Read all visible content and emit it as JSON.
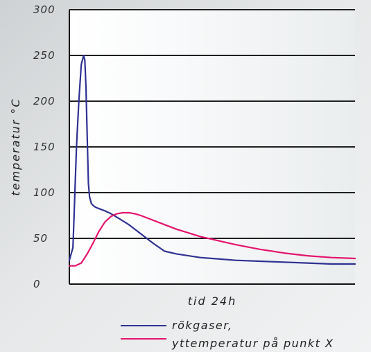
{
  "chart_data": {
    "type": "line",
    "ylabel": "temperatur   °C",
    "xlabel": "tid 24h",
    "ylim": [
      0,
      300
    ],
    "yticks": [
      0,
      50,
      100,
      150,
      200,
      250,
      300
    ],
    "xlim": [
      0,
      24
    ],
    "grid": true,
    "legend_position": "bottom",
    "series": [
      {
        "name": "rökgaser,",
        "color": "#2e3192",
        "x": [
          0,
          0.3,
          0.6,
          0.8,
          1.0,
          1.2,
          1.3,
          1.4,
          1.5,
          1.6,
          1.7,
          1.85,
          2.0,
          2.2,
          2.6,
          3.0,
          3.5,
          4.0,
          5.0,
          6.0,
          7.0,
          8.0,
          9.0,
          10.0,
          11.0,
          12.0,
          14.0,
          16.0,
          18.0,
          20.0,
          22.0,
          24.0
        ],
        "values": [
          26,
          40,
          150,
          200,
          240,
          250,
          245,
          215,
          160,
          110,
          95,
          88,
          86,
          84,
          82,
          80,
          77,
          73,
          65,
          55,
          45,
          36,
          33,
          31,
          29,
          28,
          26,
          25,
          24,
          23,
          22,
          22
        ]
      },
      {
        "name": "yttemperatur på punkt X",
        "color": "#e4136d",
        "x": [
          0,
          0.5,
          1.0,
          1.5,
          2.0,
          2.5,
          3.0,
          3.5,
          4.0,
          4.5,
          5.0,
          5.5,
          6.0,
          7.0,
          8.0,
          9.0,
          10.0,
          11.0,
          12.0,
          13.0,
          14.0,
          16.0,
          18.0,
          20.0,
          22.0,
          24.0
        ],
        "values": [
          20,
          20,
          23,
          33,
          45,
          58,
          68,
          74,
          77,
          78,
          78,
          77,
          75,
          70,
          65,
          60,
          56,
          52,
          49,
          46,
          43,
          38,
          34,
          31,
          29,
          28
        ]
      }
    ]
  }
}
